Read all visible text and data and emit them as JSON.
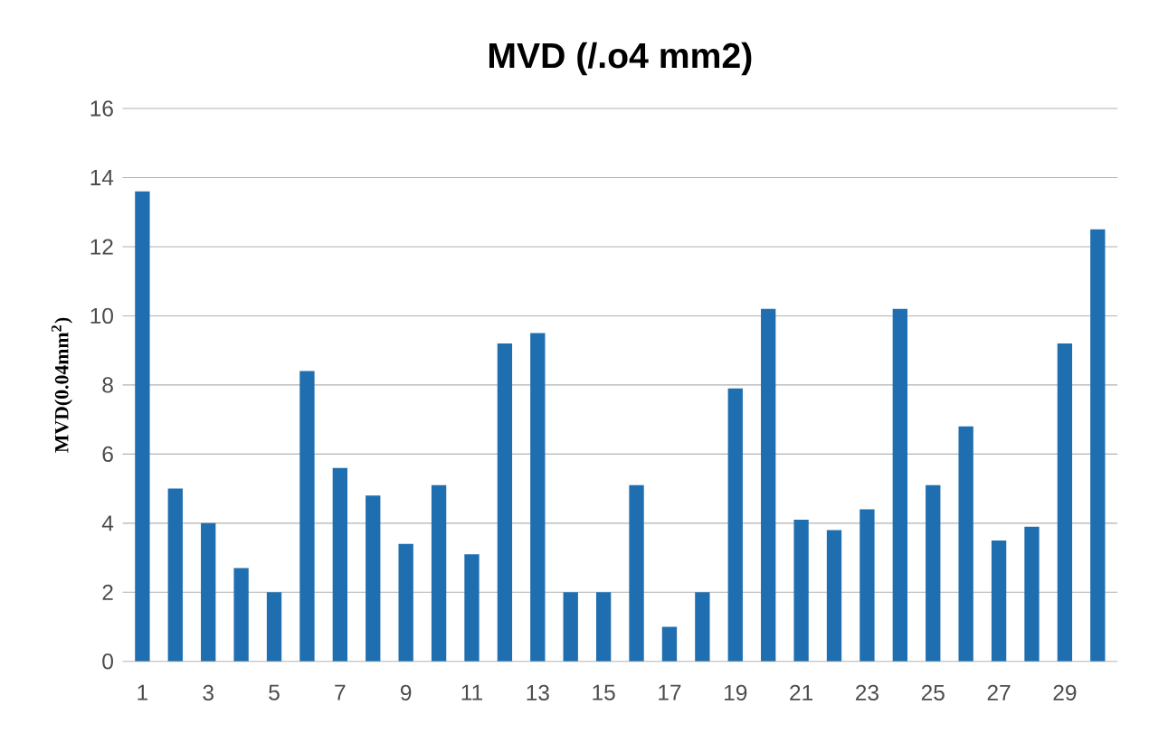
{
  "chart_data": {
    "type": "bar",
    "title": "MVD (/.o4 mm2)",
    "ylabel": "MVD(0.04mm$^{2}$)",
    "categories": [
      "1",
      null,
      "3",
      null,
      "5",
      null,
      "7",
      null,
      "9",
      null,
      "11",
      null,
      "13",
      null,
      "15",
      null,
      "17",
      null,
      "19",
      null,
      "21",
      null,
      "23",
      null,
      "25",
      null,
      "27",
      null,
      "29",
      null
    ],
    "values": [
      13.6,
      5,
      4,
      2.7,
      2,
      8.4,
      5.6,
      4.8,
      3.4,
      5.1,
      3.1,
      9.2,
      9.5,
      2,
      2,
      5.1,
      1,
      2,
      7.9,
      10.2,
      4.1,
      3.8,
      4.4,
      10.2,
      5.1,
      6.8,
      3.5,
      3.9,
      9.2,
      12.5
    ],
    "color": "#1f6fb0",
    "ylim": [
      0,
      16
    ],
    "yticks": [
      0,
      2,
      4,
      6,
      8,
      10,
      12,
      14,
      16
    ],
    "grid": "y"
  }
}
